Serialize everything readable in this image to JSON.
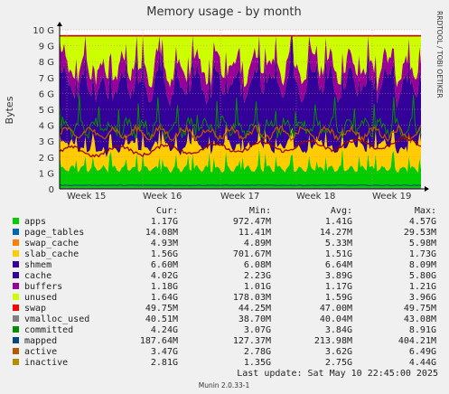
{
  "chart_data": {
    "type": "area",
    "title": "Memory usage - by month",
    "ylabel": "Bytes",
    "xlabel": "",
    "ylim": [
      0,
      10
    ],
    "y_unit": "G",
    "y_ticks": [
      "0",
      "1 G",
      "2 G",
      "3 G",
      "4 G",
      "5 G",
      "6 G",
      "7 G",
      "8 G",
      "9 G",
      "10 G"
    ],
    "x_ticks": [
      "Week 15",
      "Week 16",
      "Week 17",
      "Week 18",
      "Week 19"
    ],
    "grid": true,
    "legend_position": "bottom",
    "side_label": "RRDTOOL / TOBI OETIKER",
    "columns": [
      "Cur:",
      "Min:",
      "Avg:",
      "Max:"
    ],
    "series": [
      {
        "name": "apps",
        "color": "#00cc00",
        "style": "area",
        "cur": "1.17G",
        "min": "972.47M",
        "avg": "1.41G",
        "max": "4.57G"
      },
      {
        "name": "page_tables",
        "color": "#0066b3",
        "style": "stack",
        "cur": "14.08M",
        "min": "11.41M",
        "avg": "14.27M",
        "max": "29.53M"
      },
      {
        "name": "swap_cache",
        "color": "#ff8000",
        "style": "stack",
        "cur": "4.93M",
        "min": "4.89M",
        "avg": "5.33M",
        "max": "5.98M"
      },
      {
        "name": "slab_cache",
        "color": "#ffcc00",
        "style": "stack",
        "cur": "1.56G",
        "min": "701.67M",
        "avg": "1.51G",
        "max": "1.73G"
      },
      {
        "name": "shmem",
        "color": "#330099",
        "style": "stack",
        "cur": "6.60M",
        "min": "6.08M",
        "avg": "6.64M",
        "max": "8.09M"
      },
      {
        "name": "cache",
        "color": "#330099",
        "style": "stack",
        "cur": "4.02G",
        "min": "2.23G",
        "avg": "3.89G",
        "max": "5.80G"
      },
      {
        "name": "buffers",
        "color": "#990099",
        "style": "stack",
        "cur": "1.18G",
        "min": "1.01G",
        "avg": "1.17G",
        "max": "1.21G"
      },
      {
        "name": "unused",
        "color": "#ccff00",
        "style": "stack",
        "cur": "1.64G",
        "min": "178.03M",
        "avg": "1.59G",
        "max": "3.96G"
      },
      {
        "name": "swap",
        "color": "#ff0000",
        "style": "stack",
        "cur": "49.75M",
        "min": "44.25M",
        "avg": "47.00M",
        "max": "49.75M"
      },
      {
        "name": "vmalloc_used",
        "color": "#808080",
        "style": "line",
        "cur": "40.51M",
        "min": "38.70M",
        "avg": "40.04M",
        "max": "43.08M"
      },
      {
        "name": "committed",
        "color": "#008f00",
        "style": "line",
        "cur": "4.24G",
        "min": "3.07G",
        "avg": "3.84G",
        "max": "8.91G"
      },
      {
        "name": "mapped",
        "color": "#00487d",
        "style": "line",
        "cur": "187.64M",
        "min": "127.37M",
        "avg": "213.98M",
        "max": "404.21M"
      },
      {
        "name": "active",
        "color": "#b35a00",
        "style": "line",
        "cur": "3.47G",
        "min": "2.78G",
        "avg": "3.62G",
        "max": "6.49G"
      },
      {
        "name": "inactive",
        "color": "#b38f00",
        "style": "line",
        "cur": "2.81G",
        "min": "1.35G",
        "avg": "2.75G",
        "max": "4.44G"
      }
    ],
    "last_update": "Last update:  Sat May 10 22:45:00 2025",
    "footer": "Munin 2.0.33-1"
  }
}
